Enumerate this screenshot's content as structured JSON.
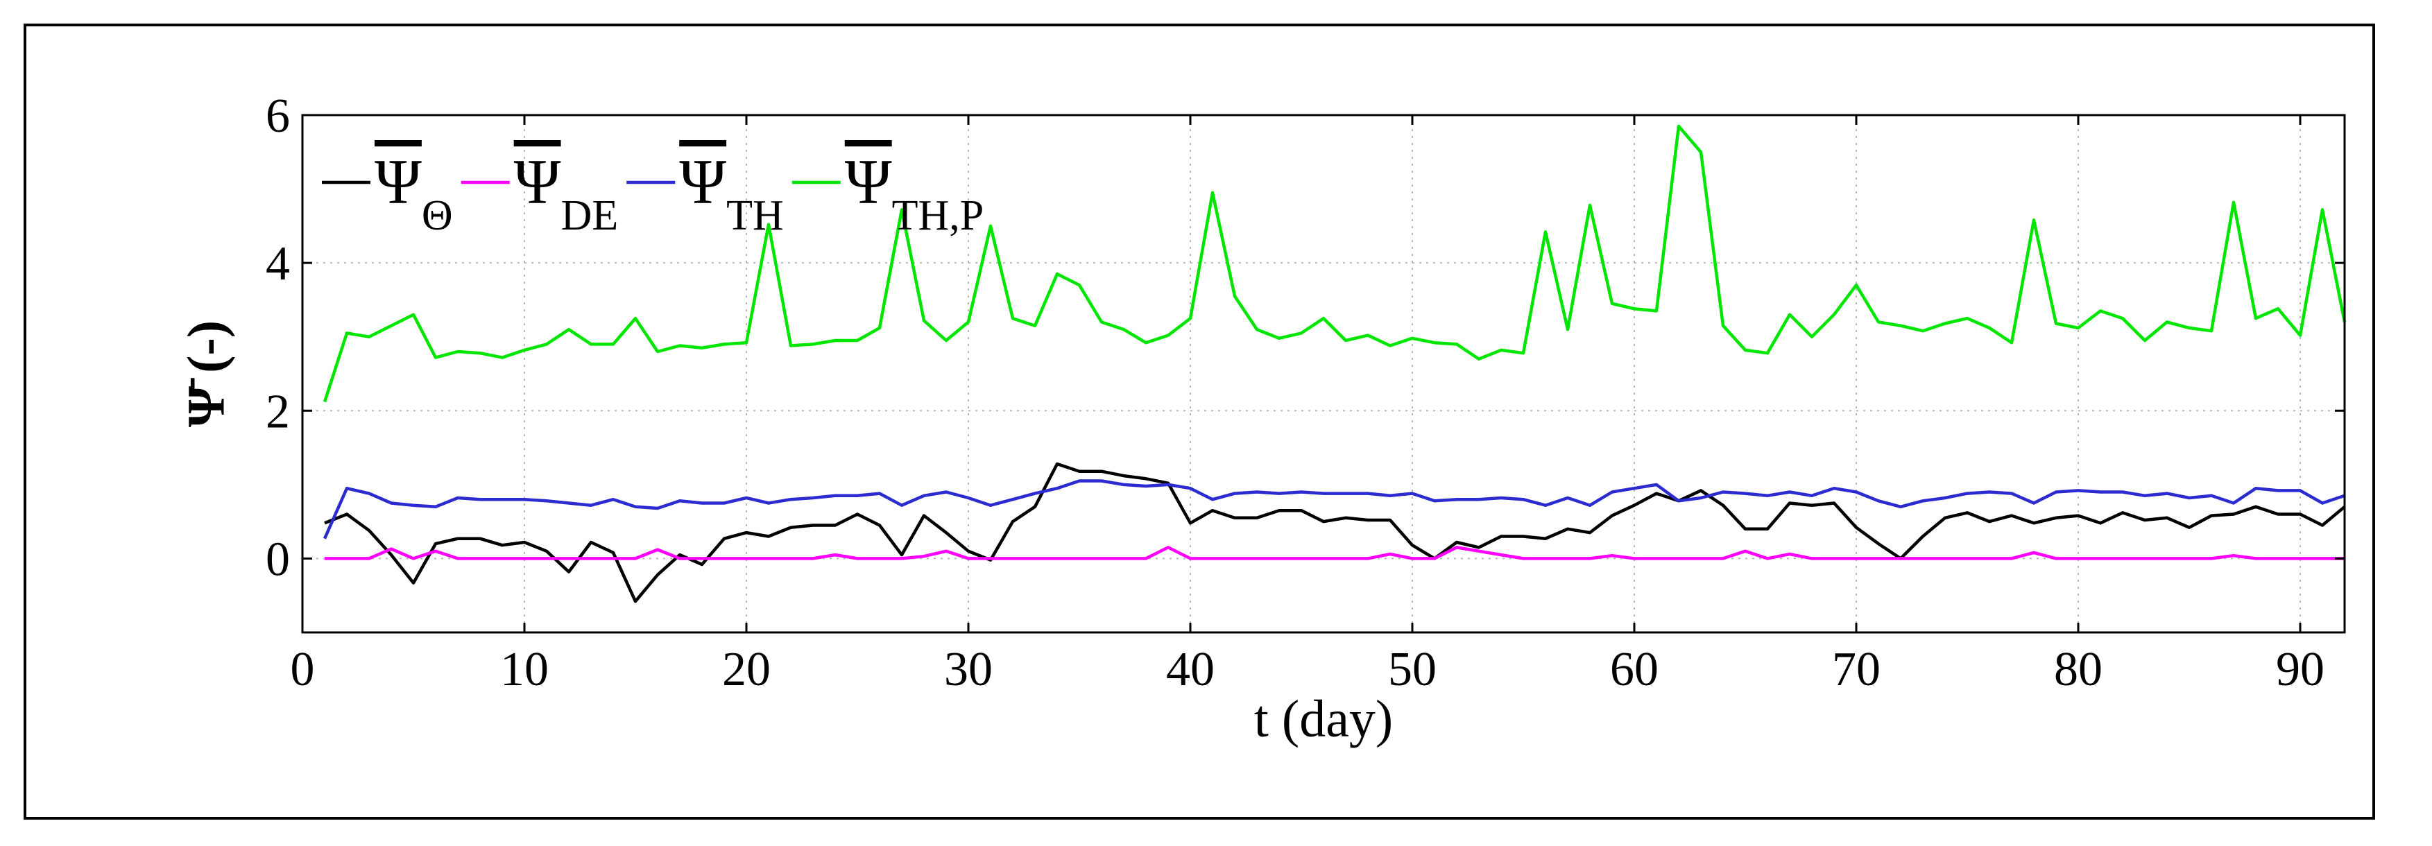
{
  "chart_data": {
    "type": "line",
    "title": "",
    "xlabel": "t (day)",
    "ylabel": "Ψ̄ (-)",
    "xlim": [
      0,
      92
    ],
    "ylim": [
      -1,
      6
    ],
    "xticks": [
      0,
      10,
      20,
      30,
      40,
      50,
      60,
      70,
      80,
      90
    ],
    "yticks": [
      0,
      2,
      4,
      6
    ],
    "grid": true,
    "legend_position": "top-left",
    "x": [
      1,
      2,
      3,
      4,
      5,
      6,
      7,
      8,
      9,
      10,
      11,
      12,
      13,
      14,
      15,
      16,
      17,
      18,
      19,
      20,
      21,
      22,
      23,
      24,
      25,
      26,
      27,
      28,
      29,
      30,
      31,
      32,
      33,
      34,
      35,
      36,
      37,
      38,
      39,
      40,
      41,
      42,
      43,
      44,
      45,
      46,
      47,
      48,
      49,
      50,
      51,
      52,
      53,
      54,
      55,
      56,
      57,
      58,
      59,
      60,
      61,
      62,
      63,
      64,
      65,
      66,
      67,
      68,
      69,
      70,
      71,
      72,
      73,
      74,
      75,
      76,
      77,
      78,
      79,
      80,
      81,
      82,
      83,
      84,
      85,
      86,
      87,
      88,
      89,
      90,
      91,
      92
    ],
    "series": [
      {
        "name": "Ψ̄_Θ",
        "legend_main": "Ψ",
        "legend_sub": "Θ",
        "color": "#000000",
        "values": [
          0.48,
          0.6,
          0.38,
          0.05,
          -0.33,
          0.2,
          0.27,
          0.27,
          0.18,
          0.22,
          0.1,
          -0.18,
          0.22,
          0.08,
          -0.58,
          -0.22,
          0.05,
          -0.08,
          0.27,
          0.35,
          0.3,
          0.42,
          0.45,
          0.45,
          0.6,
          0.45,
          0.05,
          0.58,
          0.35,
          0.1,
          -0.02,
          0.5,
          0.7,
          1.28,
          1.18,
          1.18,
          1.12,
          1.08,
          1.02,
          0.48,
          0.65,
          0.55,
          0.55,
          0.65,
          0.65,
          0.5,
          0.55,
          0.52,
          0.52,
          0.18,
          0.0,
          0.22,
          0.15,
          0.3,
          0.3,
          0.27,
          0.4,
          0.35,
          0.58,
          0.72,
          0.88,
          0.78,
          0.92,
          0.72,
          0.4,
          0.4,
          0.75,
          0.72,
          0.75,
          0.42,
          0.2,
          0.0,
          0.3,
          0.55,
          0.62,
          0.5,
          0.58,
          0.48,
          0.55,
          0.58,
          0.48,
          0.62,
          0.52,
          0.55,
          0.42,
          0.58,
          0.6,
          0.7,
          0.6,
          0.6,
          0.45,
          0.7
        ]
      },
      {
        "name": "Ψ̄_DE",
        "legend_main": "Ψ",
        "legend_sub": "DE",
        "color": "#ff00ff",
        "values": [
          0,
          0,
          0,
          0.13,
          0,
          0.1,
          0,
          0,
          0,
          0,
          0,
          0,
          0,
          0,
          0,
          0.12,
          0,
          0,
          0,
          0,
          0,
          0,
          0,
          0.05,
          0,
          0,
          0,
          0.03,
          0.1,
          0,
          0,
          0,
          0,
          0,
          0,
          0,
          0,
          0,
          0.15,
          0,
          0,
          0,
          0,
          0,
          0,
          0,
          0,
          0,
          0.06,
          0,
          0,
          0.15,
          0.1,
          0.05,
          0,
          0,
          0,
          0,
          0.04,
          0,
          0,
          0,
          0,
          0,
          0.1,
          0,
          0.06,
          0,
          0,
          0,
          0,
          0,
          0,
          0,
          0,
          0,
          0,
          0.08,
          0,
          0,
          0,
          0,
          0,
          0,
          0,
          0,
          0.04,
          0,
          0,
          0,
          0,
          0
        ]
      },
      {
        "name": "Ψ̄_TH",
        "legend_main": "Ψ",
        "legend_sub": "TH",
        "color": "#2b2bd0",
        "values": [
          0.27,
          0.95,
          0.88,
          0.75,
          0.72,
          0.7,
          0.82,
          0.8,
          0.8,
          0.8,
          0.78,
          0.75,
          0.72,
          0.8,
          0.7,
          0.68,
          0.78,
          0.75,
          0.75,
          0.82,
          0.75,
          0.8,
          0.82,
          0.85,
          0.85,
          0.88,
          0.72,
          0.85,
          0.9,
          0.82,
          0.72,
          0.8,
          0.88,
          0.95,
          1.05,
          1.05,
          1.0,
          0.98,
          1.0,
          0.95,
          0.8,
          0.88,
          0.9,
          0.88,
          0.9,
          0.88,
          0.88,
          0.88,
          0.85,
          0.88,
          0.78,
          0.8,
          0.8,
          0.82,
          0.8,
          0.72,
          0.82,
          0.72,
          0.9,
          0.95,
          1.0,
          0.78,
          0.82,
          0.9,
          0.88,
          0.85,
          0.9,
          0.85,
          0.95,
          0.9,
          0.78,
          0.7,
          0.78,
          0.82,
          0.88,
          0.9,
          0.88,
          0.75,
          0.9,
          0.92,
          0.9,
          0.9,
          0.85,
          0.88,
          0.82,
          0.85,
          0.75,
          0.95,
          0.92,
          0.92,
          0.75,
          0.85
        ]
      },
      {
        "name": "Ψ̄_TH,P",
        "legend_main": "Ψ",
        "legend_sub": "TH,P",
        "color": "#00e600",
        "values": [
          2.12,
          3.05,
          3.0,
          3.15,
          3.3,
          2.72,
          2.8,
          2.78,
          2.72,
          2.82,
          2.9,
          3.1,
          2.9,
          2.9,
          3.25,
          2.8,
          2.88,
          2.85,
          2.9,
          2.92,
          4.52,
          2.88,
          2.9,
          2.95,
          2.95,
          3.12,
          4.72,
          3.22,
          2.95,
          3.2,
          4.5,
          3.25,
          3.15,
          3.85,
          3.7,
          3.2,
          3.1,
          2.92,
          3.02,
          3.25,
          4.95,
          3.55,
          3.1,
          2.98,
          3.05,
          3.25,
          2.95,
          3.02,
          2.88,
          2.98,
          2.92,
          2.9,
          2.7,
          2.82,
          2.78,
          4.42,
          3.1,
          4.78,
          3.45,
          3.38,
          3.35,
          5.85,
          5.5,
          3.15,
          2.82,
          2.78,
          3.3,
          3.0,
          3.3,
          3.7,
          3.2,
          3.15,
          3.08,
          3.18,
          3.25,
          3.12,
          2.92,
          4.58,
          3.18,
          3.12,
          3.35,
          3.25,
          2.95,
          3.2,
          3.12,
          3.08,
          4.82,
          3.25,
          3.38,
          3.02,
          4.72,
          3.2
        ]
      }
    ]
  }
}
